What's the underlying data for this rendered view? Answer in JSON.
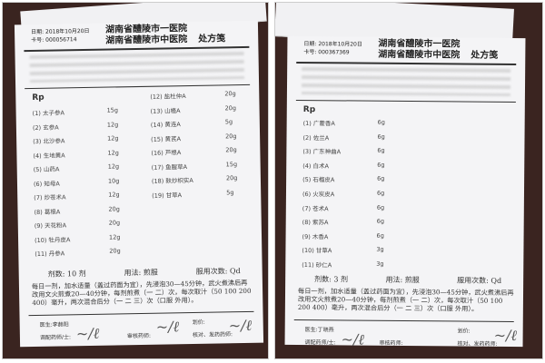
{
  "prescriptions": [
    {
      "date": "日期: 2018年10月20日",
      "card": "卡号: 000056714",
      "hospital_line1": "湖南省醴陵市一医院",
      "hospital_line2": "湖南省醴陵市中医院",
      "form_type": "处方笺",
      "rp": "Rp",
      "items": [
        {
          "no": "(1)",
          "name": "太子参A",
          "dose": "15g"
        },
        {
          "no": "(2)",
          "name": "玄参A",
          "dose": "12g"
        },
        {
          "no": "(3)",
          "name": "北沙参A",
          "dose": "12g"
        },
        {
          "no": "(4)",
          "name": "生地黄A",
          "dose": "12g"
        },
        {
          "no": "(5)",
          "name": "山药A",
          "dose": "12g"
        },
        {
          "no": "(6)",
          "name": "知母A",
          "dose": "10g"
        },
        {
          "no": "(7)",
          "name": "炒苍术A",
          "dose": "12g"
        },
        {
          "no": "(8)",
          "name": "葛根A",
          "dose": "20g"
        },
        {
          "no": "(9)",
          "name": "天花粉A",
          "dose": "20g"
        },
        {
          "no": "(10)",
          "name": "牡丹皮A",
          "dose": "12g"
        },
        {
          "no": "(11)",
          "name": "丹参A",
          "dose": "20g"
        },
        {
          "no": "(12)",
          "name": "盐杜仲A",
          "dose": "20g"
        },
        {
          "no": "(13)",
          "name": "山楂A",
          "dose": "20g"
        },
        {
          "no": "(14)",
          "name": "黄连A",
          "dose": "5g"
        },
        {
          "no": "(15)",
          "name": "黄芪A",
          "dose": "20g"
        },
        {
          "no": "(16)",
          "name": "芦根A",
          "dose": "20g"
        },
        {
          "no": "(17)",
          "name": "鱼腥草A",
          "dose": "15g"
        },
        {
          "no": "(18)",
          "name": "麸炒枳实A",
          "dose": "20g"
        },
        {
          "no": "(19)",
          "name": "甘草A",
          "dose": "5g"
        }
      ],
      "doses_label": "剂数:",
      "doses": "10 剂",
      "usage_label": "用法:",
      "usage": "煎服",
      "freq_label": "服用次数:",
      "freq": "Qd",
      "instructions": "每日一剂，加水适量（盖过药面为宜），先浸泡30—45分钟，武火煮沸后再改用文火煎煮20—40分钟，每剂煎煮（一 二）次，每次取汁（50 100 200 400）毫升，两次混合后分（一 二 三）次（口服 外用）。",
      "doctor_label": "医生:",
      "doctor": "李赫阳",
      "price_label": "划价:",
      "dispense_label": "调配药师/士:",
      "review_label": "审核药师:",
      "check_label": "核对、发药药师:"
    },
    {
      "date": "日期: 2018年10月20日",
      "card": "卡号: 000367369",
      "hospital_line1": "湖南省醴陵市一医院",
      "hospital_line2": "湖南省醴陵市中医院",
      "form_type": "处方笺",
      "rp": "Rp",
      "items": [
        {
          "no": "(1)",
          "name": "广藿香A",
          "dose": "6g"
        },
        {
          "no": "(2)",
          "name": "佐兰A",
          "dose": "6g"
        },
        {
          "no": "(3)",
          "name": "广东神曲A",
          "dose": "6g"
        },
        {
          "no": "(4)",
          "name": "白术A",
          "dose": "6g"
        },
        {
          "no": "(5)",
          "name": "石榴皮A",
          "dose": "6g"
        },
        {
          "no": "(6)",
          "name": "火炭皮A",
          "dose": "6g"
        },
        {
          "no": "(7)",
          "name": "苍术A",
          "dose": "6g"
        },
        {
          "no": "(8)",
          "name": "紫苏A",
          "dose": "6g"
        },
        {
          "no": "(9)",
          "name": "木香A",
          "dose": "6g"
        },
        {
          "no": "(10)",
          "name": "甘草A",
          "dose": "3g"
        },
        {
          "no": "(11)",
          "name": "砂仁A",
          "dose": "3g"
        }
      ],
      "doses_label": "剂数:",
      "doses": "3 剂",
      "usage_label": "用法:",
      "usage": "煎服",
      "freq_label": "服用次数:",
      "freq": "Qd",
      "instructions": "每日一剂，加水适量（盖过药面为宜），先浸泡30—45分钟，武火煮沸后再改用文火煎煮20—40分钟，每剂煎煮（一 二）次，每次取汁（50 100 200 400）毫升，两次混合后分（一 二 三）次（口服 外用）。",
      "doctor_label": "医生:",
      "doctor": "丁晓燕",
      "price_label": "划价:",
      "dispense_label": "调配药师/士:",
      "review_label": "审核药师:",
      "check_label": "核对、发药药师:"
    }
  ]
}
